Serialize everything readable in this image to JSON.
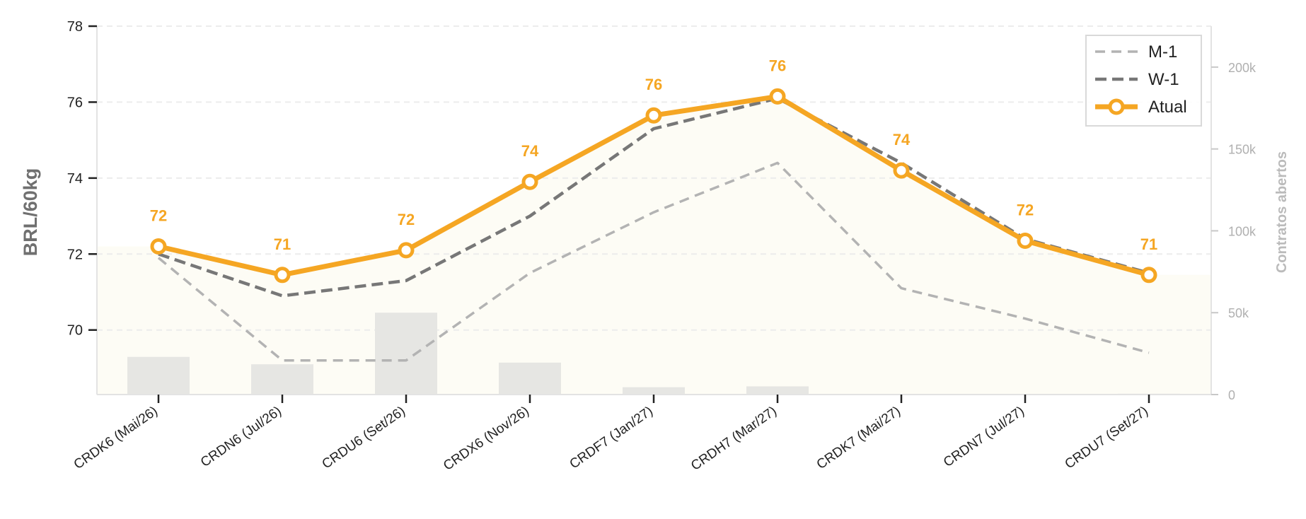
{
  "chart_data": {
    "type": "line",
    "categories": [
      "CRDK6 (Mai/26)",
      "CRDN6 (Jul/26)",
      "CRDU6 (Set/26)",
      "CRDX6 (Nov/26)",
      "CRDF7 (Jan/27)",
      "CRDH7 (Mar/27)",
      "CRDK7 (Mai/27)",
      "CRDN7 (Jul/27)",
      "CRDU7 (Set/27)"
    ],
    "series": [
      {
        "name": "M-1",
        "color": "#b3b3b3",
        "style": "dashed",
        "values": [
          71.9,
          69.2,
          69.2,
          71.5,
          73.1,
          74.4,
          71.1,
          70.3,
          69.4
        ]
      },
      {
        "name": "W-1",
        "color": "#777777",
        "style": "dashed",
        "values": [
          72.0,
          70.9,
          71.3,
          73.0,
          75.3,
          76.1,
          74.4,
          72.4,
          71.5
        ]
      },
      {
        "name": "Atual",
        "color": "#f5a623",
        "style": "solid-markers",
        "values": [
          72.2,
          71.45,
          72.1,
          73.9,
          75.65,
          76.15,
          74.2,
          72.35,
          71.45
        ]
      }
    ],
    "labels": [
      "72",
      "71",
      "72",
      "74",
      "76",
      "76",
      "74",
      "72",
      "71"
    ],
    "open_interest": {
      "axis_label": "Contratos abertos",
      "values": [
        23000,
        18500,
        50000,
        19500,
        4500,
        5000,
        0,
        0,
        500
      ],
      "color": "#e6e6e3",
      "ylim": [
        0,
        225000
      ],
      "ticks": [
        0,
        50000,
        100000,
        150000,
        200000
      ],
      "tick_labels": [
        "0",
        "50k",
        "100k",
        "150k",
        "200k"
      ]
    },
    "ylabel": "BRL/60kg",
    "ylim": [
      68.3,
      78
    ],
    "yticks": [
      70,
      72,
      74,
      76,
      78
    ],
    "legend": {
      "position": "top-right",
      "entries": [
        "M-1",
        "W-1",
        "Atual"
      ]
    },
    "grid": true,
    "background_fill_color": "#fdfcf5"
  }
}
